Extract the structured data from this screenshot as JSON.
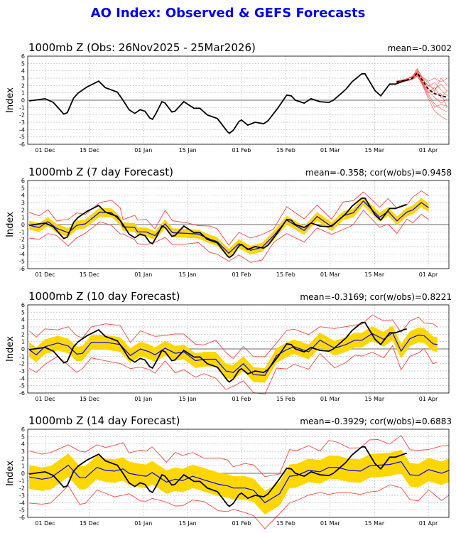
{
  "title": "AO Index: Observed & GEFS Forecasts",
  "colors": {
    "title": "#0000ee",
    "obs": "#000000",
    "mean": "#0000ff",
    "band": "#ffd700",
    "range": "#ff4444",
    "members": "#ff2222"
  },
  "chart_data": {
    "type": "line",
    "x_units": "days since 26 Nov 2025",
    "xlim": [
      -0.5,
      132.5
    ],
    "ylim": [
      -6,
      6
    ],
    "grid": true,
    "xticks": [
      {
        "day": 5,
        "label": "01 Dec"
      },
      {
        "day": 19,
        "label": "15 Dec"
      },
      {
        "day": 36,
        "label": "01 Jan"
      },
      {
        "day": 50,
        "label": "15 Jan"
      },
      {
        "day": 67,
        "label": "01 Feb"
      },
      {
        "day": 81,
        "label": "15 Feb"
      },
      {
        "day": 95,
        "label": "01 Mar"
      },
      {
        "day": 109,
        "label": "15 Mar"
      },
      {
        "day": 126,
        "label": "01 Apr"
      }
    ],
    "yticks": [
      -6,
      -5,
      -4,
      -3,
      -2,
      -1,
      0,
      1,
      2,
      3,
      4,
      5,
      6
    ],
    "ylabel": "Index",
    "observed": [
      [
        0,
        -0.1
      ],
      [
        5,
        0.2
      ],
      [
        7.6,
        -0.3
      ],
      [
        10.9,
        -1.9
      ],
      [
        12,
        -1.7
      ],
      [
        14,
        0.3
      ],
      [
        15.5,
        1.0
      ],
      [
        18.2,
        1.8
      ],
      [
        21.9,
        2.6
      ],
      [
        24,
        1.7
      ],
      [
        27.8,
        1.1
      ],
      [
        29.6,
        0
      ],
      [
        31.5,
        -1.3
      ],
      [
        33.3,
        -1.8
      ],
      [
        35,
        -1.3
      ],
      [
        36.5,
        -1.5
      ],
      [
        38,
        -2.4
      ],
      [
        38.9,
        -2.6
      ],
      [
        40,
        -1.8
      ],
      [
        41.9,
        -0.2
      ],
      [
        42.9,
        -0.4
      ],
      [
        45,
        -1.6
      ],
      [
        46,
        -1.5
      ],
      [
        48.8,
        -0.2
      ],
      [
        52,
        -1.1
      ],
      [
        53.9,
        -1.1
      ],
      [
        56.2,
        -2.0
      ],
      [
        59.4,
        -2.5
      ],
      [
        62.6,
        -4.3
      ],
      [
        63.2,
        -4.5
      ],
      [
        64.4,
        -4.1
      ],
      [
        66.2,
        -2.9
      ],
      [
        67,
        -2.7
      ],
      [
        69,
        -3.4
      ],
      [
        71.3,
        -3.0
      ],
      [
        72.6,
        -3.1
      ],
      [
        74,
        -3.2
      ],
      [
        75.4,
        -2.8
      ],
      [
        78.6,
        -1.0
      ],
      [
        81.3,
        0.7
      ],
      [
        82.7,
        0.6
      ],
      [
        84,
        0
      ],
      [
        86.8,
        -0.4
      ],
      [
        89,
        0.2
      ],
      [
        91.8,
        -0.2
      ],
      [
        94.6,
        -0.3
      ],
      [
        96,
        0
      ],
      [
        98.7,
        1.0
      ],
      [
        100,
        1.5
      ],
      [
        101.9,
        2.5
      ],
      [
        105,
        3.6
      ],
      [
        106,
        3.6
      ],
      [
        109.2,
        1.3
      ],
      [
        111,
        0.6
      ],
      [
        113.8,
        2.2
      ],
      [
        115.6,
        2.2
      ],
      [
        118.8,
        2.7
      ],
      [
        119.2,
        2.7
      ]
    ],
    "panels": [
      {
        "title": "1000mb Z (Obs: 26Nov2025 - 25Mar2026)",
        "stats": "mean=-0.3002",
        "ensemble_mean": [
          [
            116,
            2.5
          ],
          [
            119,
            2.7
          ],
          [
            121,
            3.0
          ],
          [
            122.5,
            3.7
          ],
          [
            124,
            2.8
          ],
          [
            126,
            1.5
          ],
          [
            128,
            0.9
          ],
          [
            130,
            0.6
          ],
          [
            132,
            0.4
          ]
        ],
        "members": [
          [
            [
              116,
              2.5
            ],
            [
              119,
              2.8
            ],
            [
              121,
              3.2
            ],
            [
              122.5,
              4.3
            ],
            [
              124,
              3.2
            ],
            [
              126,
              2.6
            ],
            [
              128,
              3.0
            ],
            [
              130,
              2.5
            ],
            [
              132,
              3.0
            ]
          ],
          [
            [
              116,
              2.4
            ],
            [
              119,
              2.6
            ],
            [
              121,
              2.9
            ],
            [
              122.5,
              3.6
            ],
            [
              124,
              2.4
            ],
            [
              126,
              0.8
            ],
            [
              128,
              -0.5
            ],
            [
              130,
              -1.2
            ],
            [
              132,
              -1.6
            ]
          ],
          [
            [
              116,
              2.6
            ],
            [
              119,
              2.9
            ],
            [
              121,
              3.1
            ],
            [
              122.5,
              3.9
            ],
            [
              124,
              3.0
            ],
            [
              126,
              2.0
            ],
            [
              128,
              1.5
            ],
            [
              130,
              2.2
            ],
            [
              132,
              1.2
            ]
          ],
          [
            [
              116,
              2.5
            ],
            [
              119,
              2.7
            ],
            [
              121,
              2.8
            ],
            [
              122.5,
              3.4
            ],
            [
              124,
              2.2
            ],
            [
              126,
              0.2
            ],
            [
              128,
              -1.5
            ],
            [
              130,
              -2.2
            ],
            [
              132,
              -2.7
            ]
          ],
          [
            [
              116,
              2.5
            ],
            [
              119,
              2.6
            ],
            [
              121,
              3.0
            ],
            [
              122.5,
              4.0
            ],
            [
              124,
              2.9
            ],
            [
              126,
              1.9
            ],
            [
              128,
              2.4
            ],
            [
              130,
              1.4
            ],
            [
              132,
              0.6
            ]
          ],
          [
            [
              116,
              2.4
            ],
            [
              119,
              2.8
            ],
            [
              121,
              3.3
            ],
            [
              122.5,
              3.8
            ],
            [
              124,
              2.6
            ],
            [
              126,
              1.2
            ],
            [
              128,
              0.4
            ],
            [
              130,
              -0.4
            ],
            [
              132,
              0.2
            ]
          ],
          [
            [
              116,
              2.6
            ],
            [
              119,
              2.7
            ],
            [
              121,
              2.9
            ],
            [
              122.5,
              3.5
            ],
            [
              124,
              2.7
            ],
            [
              126,
              1.6
            ],
            [
              128,
              0.8
            ],
            [
              130,
              0.9
            ],
            [
              132,
              -1.0
            ]
          ],
          [
            [
              116,
              2.5
            ],
            [
              119,
              2.9
            ],
            [
              121,
              3.2
            ],
            [
              122.5,
              4.2
            ],
            [
              124,
              3.1
            ],
            [
              126,
              2.4
            ],
            [
              128,
              1.2
            ],
            [
              130,
              3.0
            ],
            [
              132,
              2.0
            ]
          ],
          [
            [
              116,
              2.5
            ],
            [
              119,
              2.6
            ],
            [
              121,
              2.8
            ],
            [
              122.5,
              3.3
            ],
            [
              124,
              2.3
            ],
            [
              126,
              0.5
            ],
            [
              128,
              -0.9
            ],
            [
              130,
              -0.6
            ],
            [
              132,
              -0.8
            ]
          ],
          [
            [
              116,
              2.4
            ],
            [
              119,
              2.7
            ],
            [
              121,
              3.0
            ],
            [
              122.5,
              3.7
            ],
            [
              124,
              2.5
            ],
            [
              126,
              1.0
            ],
            [
              128,
              1.8
            ],
            [
              130,
              0.3
            ],
            [
              132,
              1.4
            ]
          ]
        ]
      },
      {
        "title": "1000mb Z (7 day Forecast)",
        "stats": "mean=-0.358; cor(w/obs)=0.9458",
        "band_halfwidth": 0.6,
        "range_halfwidth": 1.5,
        "forecast_mean": [
          [
            0,
            -0.1
          ],
          [
            3.1,
            -0.4
          ],
          [
            5.9,
            0.4
          ],
          [
            8.6,
            -0.5
          ],
          [
            12.3,
            -1.1
          ],
          [
            15,
            -0.1
          ],
          [
            17.7,
            0.1
          ],
          [
            22.3,
            1.7
          ],
          [
            26,
            1.6
          ],
          [
            28.7,
            0.5
          ],
          [
            29.6,
            -0.3
          ],
          [
            33.3,
            -0.4
          ],
          [
            34.2,
            -1.0
          ],
          [
            36.9,
            -1.0
          ],
          [
            39.7,
            -1.5
          ],
          [
            42.9,
            0.1
          ],
          [
            45.2,
            -1.1
          ],
          [
            49.7,
            -1.2
          ],
          [
            53.4,
            -1.3
          ],
          [
            57.1,
            -2.0
          ],
          [
            59.3,
            -2.3
          ],
          [
            63,
            -3.9
          ],
          [
            66.2,
            -2.6
          ],
          [
            69.9,
            -3.5
          ],
          [
            73.5,
            -3.1
          ],
          [
            77.2,
            -1.5
          ],
          [
            81.3,
            0.6
          ],
          [
            86.8,
            -0.8
          ],
          [
            90.9,
            1.1
          ],
          [
            95.5,
            -0.3
          ],
          [
            99.1,
            1.2
          ],
          [
            102.3,
            1.6
          ],
          [
            105.5,
            3.2
          ],
          [
            110.6,
            1.0
          ],
          [
            113.3,
            1.8
          ],
          [
            116.1,
            0.5
          ],
          [
            119.2,
            1.7
          ],
          [
            121.1,
            2.0
          ],
          [
            123.8,
            3.0
          ],
          [
            126.1,
            2.3
          ]
        ]
      },
      {
        "title": "1000mb Z (10 day Forecast)",
        "stats": "mean=-0.3169; cor(w/obs)=0.8221",
        "band_halfwidth": 1.0,
        "range_halfwidth": 2.3,
        "forecast_mean": [
          [
            0,
            -0.1
          ],
          [
            2.2,
            -0.8
          ],
          [
            4.9,
            0.3
          ],
          [
            9,
            0.8
          ],
          [
            12.3,
            0.4
          ],
          [
            15,
            -0.7
          ],
          [
            16.8,
            -0.6
          ],
          [
            19.6,
            0.9
          ],
          [
            24.1,
            0.9
          ],
          [
            28.7,
            0.6
          ],
          [
            31.9,
            -0.9
          ],
          [
            35.1,
            0
          ],
          [
            37.9,
            -0.4
          ],
          [
            39.7,
            -0.8
          ],
          [
            42.9,
            0.1
          ],
          [
            46.1,
            -0.6
          ],
          [
            48.8,
            -0.4
          ],
          [
            52.5,
            -1.6
          ],
          [
            55.2,
            -1.4
          ],
          [
            58.9,
            -1.4
          ],
          [
            62.1,
            -3.0
          ],
          [
            64.4,
            -3.2
          ],
          [
            67.6,
            -2.0
          ],
          [
            70.8,
            -3.5
          ],
          [
            74.4,
            -3.6
          ],
          [
            78.1,
            -0.9
          ],
          [
            81.3,
            -0.1
          ],
          [
            83.6,
            0.3
          ],
          [
            88.2,
            -0.4
          ],
          [
            91.8,
            1.2
          ],
          [
            96.4,
            0.1
          ],
          [
            100,
            0.6
          ],
          [
            102.8,
            1.2
          ],
          [
            105.1,
            1.2
          ],
          [
            108.3,
            2.1
          ],
          [
            111.9,
            1.3
          ],
          [
            114.7,
            2.2
          ],
          [
            117.4,
            -0.3
          ],
          [
            120.2,
            1.4
          ],
          [
            122.9,
            1.9
          ],
          [
            124.7,
            1.8
          ],
          [
            127.5,
            0.7
          ],
          [
            128.9,
            0.6
          ]
        ]
      },
      {
        "title": "1000mb Z (14 day Forecast)",
        "stats": "mean=-0.3929; cor(w/obs)=0.6883",
        "band_halfwidth": 1.6,
        "range_halfwidth": 3.3,
        "forecast_mean": [
          [
            0,
            -0.5
          ],
          [
            4,
            -0.8
          ],
          [
            6.8,
            -0.6
          ],
          [
            12.3,
            1.1
          ],
          [
            15.9,
            -0.6
          ],
          [
            17.7,
            -0.6
          ],
          [
            21.4,
            0.8
          ],
          [
            24.1,
            0.4
          ],
          [
            26.9,
            0.3
          ],
          [
            29.6,
            0.6
          ],
          [
            31.5,
            0
          ],
          [
            35.1,
            -0.3
          ],
          [
            36.9,
            -0.4
          ],
          [
            38.8,
            0.1
          ],
          [
            43.3,
            -1.2
          ],
          [
            46.1,
            -0.8
          ],
          [
            48.4,
            -1.0
          ],
          [
            51.6,
            -0.4
          ],
          [
            55.2,
            -0.9
          ],
          [
            59.8,
            -1.5
          ],
          [
            62.6,
            -1.7
          ],
          [
            64.4,
            -2.0
          ],
          [
            68.1,
            -2.0
          ],
          [
            70.8,
            -2.3
          ],
          [
            74.4,
            -4.0
          ],
          [
            79,
            -2.8
          ],
          [
            82.2,
            -0.4
          ],
          [
            84.5,
            -0.3
          ],
          [
            88.2,
            0.4
          ],
          [
            91.8,
            0.2
          ],
          [
            94.6,
            0.8
          ],
          [
            97.3,
            0.8
          ],
          [
            101,
            0.4
          ],
          [
            104.6,
            0.3
          ],
          [
            107.4,
            1.0
          ],
          [
            110.1,
            1.1
          ],
          [
            113.8,
            1.2
          ],
          [
            117.4,
            1.6
          ],
          [
            120.2,
            -0.2
          ],
          [
            122.9,
            -0.3
          ],
          [
            126.1,
            0.5
          ],
          [
            130.2,
            0
          ],
          [
            132.5,
            0.4
          ]
        ]
      }
    ]
  }
}
